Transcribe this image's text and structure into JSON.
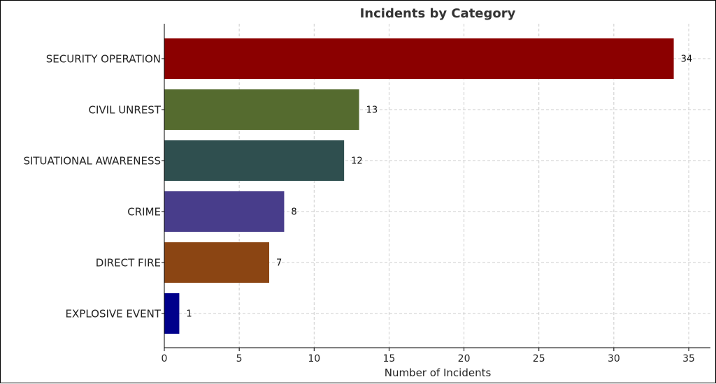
{
  "chart_data": {
    "type": "bar",
    "orientation": "horizontal",
    "title": "Incidents by Category",
    "xlabel": "Number of Incidents",
    "ylabel": "",
    "xlim": [
      0,
      35
    ],
    "xticks": [
      0,
      5,
      10,
      15,
      20,
      25,
      30,
      35
    ],
    "grid": true,
    "categories": [
      "SECURITY OPERATION",
      "CIVIL UNREST",
      "SITUATIONAL AWARENESS",
      "CRIME",
      "DIRECT FIRE",
      "EXPLOSIVE EVENT"
    ],
    "values": [
      34,
      13,
      12,
      8,
      7,
      1
    ],
    "colors": [
      "#8b0000",
      "#556b2f",
      "#2f4f4f",
      "#483d8b",
      "#8b4513",
      "#00008b"
    ],
    "data_labels": [
      "34",
      "13",
      "12",
      "8",
      "7",
      "1"
    ]
  }
}
